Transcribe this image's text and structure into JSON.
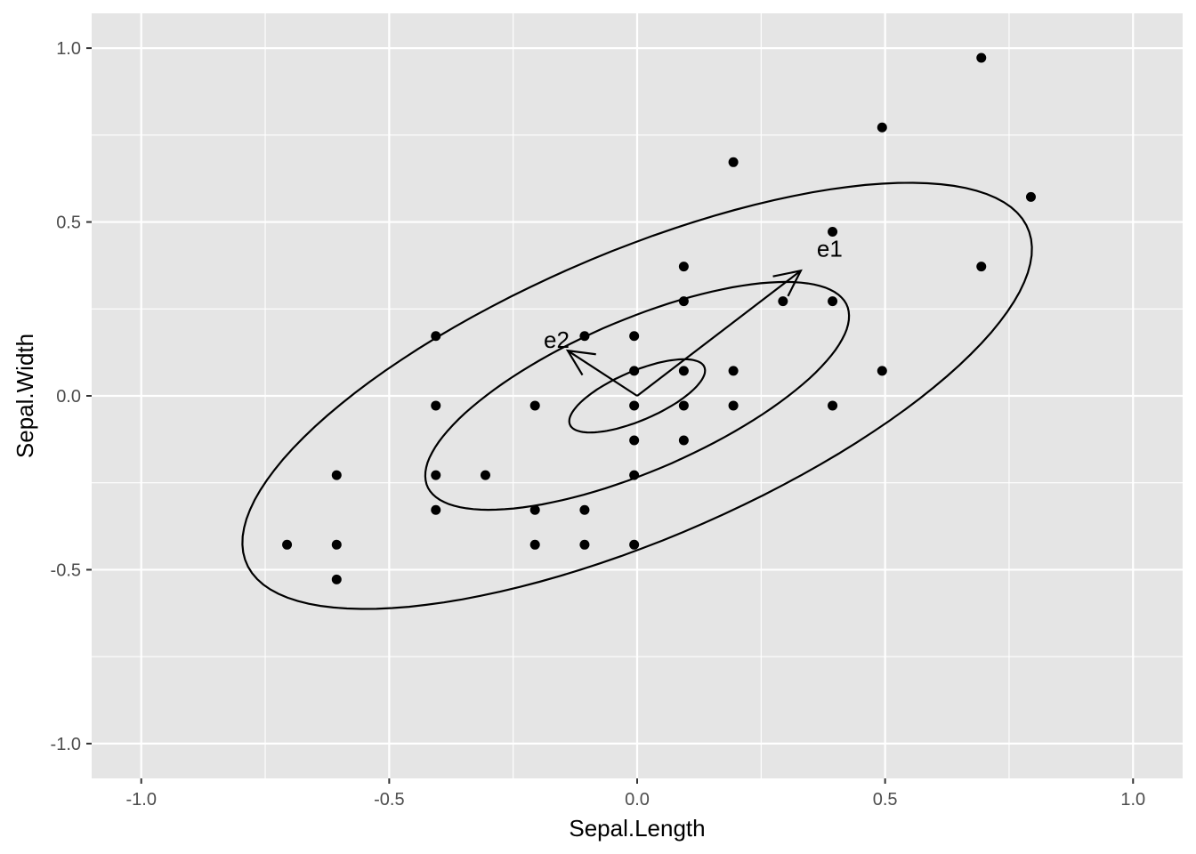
{
  "chart_data": {
    "type": "scatter",
    "xlabel": "Sepal.Length",
    "ylabel": "Sepal.Width",
    "xlim": [
      -1.1,
      1.1
    ],
    "ylim": [
      -1.1,
      1.1
    ],
    "x_ticks": [
      -1.0,
      -0.5,
      0.0,
      0.5,
      1.0
    ],
    "y_ticks": [
      -1.0,
      -0.5,
      0.0,
      0.5,
      1.0
    ],
    "x_tick_labels": [
      "-1.0",
      "-0.5",
      "0.0",
      "0.5",
      "1.0"
    ],
    "y_tick_labels": [
      "-1.0",
      "-0.5",
      "0.0",
      "0.5",
      "1.0"
    ],
    "grid": true,
    "colors": {
      "panel": "#e5e5e5",
      "grid": "#ffffff",
      "ink": "#000000",
      "tick_text": "#4d4d4d"
    },
    "points": [
      {
        "x": -0.706,
        "y": -0.428
      },
      {
        "x": -0.606,
        "y": -0.228
      },
      {
        "x": -0.606,
        "y": -0.428
      },
      {
        "x": -0.606,
        "y": -0.528
      },
      {
        "x": -0.406,
        "y": 0.172
      },
      {
        "x": -0.406,
        "y": -0.028
      },
      {
        "x": -0.406,
        "y": -0.228
      },
      {
        "x": -0.406,
        "y": -0.328
      },
      {
        "x": -0.306,
        "y": -0.228
      },
      {
        "x": -0.206,
        "y": -0.028
      },
      {
        "x": -0.206,
        "y": -0.328
      },
      {
        "x": -0.206,
        "y": -0.428
      },
      {
        "x": -0.106,
        "y": 0.172
      },
      {
        "x": -0.106,
        "y": -0.328
      },
      {
        "x": -0.106,
        "y": -0.428
      },
      {
        "x": -0.006,
        "y": 0.172
      },
      {
        "x": -0.006,
        "y": 0.072
      },
      {
        "x": -0.006,
        "y": -0.028
      },
      {
        "x": -0.006,
        "y": -0.128
      },
      {
        "x": -0.006,
        "y": -0.228
      },
      {
        "x": -0.006,
        "y": -0.428
      },
      {
        "x": 0.094,
        "y": 0.372
      },
      {
        "x": 0.094,
        "y": 0.272
      },
      {
        "x": 0.094,
        "y": 0.072
      },
      {
        "x": 0.094,
        "y": -0.028
      },
      {
        "x": 0.094,
        "y": -0.128
      },
      {
        "x": 0.194,
        "y": 0.672
      },
      {
        "x": 0.194,
        "y": 0.072
      },
      {
        "x": 0.194,
        "y": -0.028
      },
      {
        "x": 0.294,
        "y": 0.272
      },
      {
        "x": 0.394,
        "y": 0.472
      },
      {
        "x": 0.394,
        "y": 0.272
      },
      {
        "x": 0.394,
        "y": -0.028
      },
      {
        "x": 0.494,
        "y": 0.772
      },
      {
        "x": 0.494,
        "y": 0.072
      },
      {
        "x": 0.694,
        "y": 0.972
      },
      {
        "x": 0.694,
        "y": 0.372
      },
      {
        "x": 0.794,
        "y": 0.572
      }
    ],
    "ellipses": [
      {
        "cx": 0.0,
        "cy": 0.0,
        "rx": 0.16,
        "ry": 0.065,
        "angle_deg": 34.5
      },
      {
        "cx": 0.0,
        "cy": 0.0,
        "rx": 0.5,
        "ry": 0.2,
        "angle_deg": 34.5
      },
      {
        "cx": 0.0,
        "cy": 0.0,
        "rx": 0.93,
        "ry": 0.38,
        "angle_deg": 34.5
      }
    ],
    "vectors": [
      {
        "label": "e1",
        "x0": 0.0,
        "y0": 0.0,
        "x1": 0.33,
        "y1": 0.36
      },
      {
        "label": "e2",
        "x0": 0.0,
        "y0": 0.0,
        "x1": -0.14,
        "y1": 0.13
      }
    ]
  }
}
